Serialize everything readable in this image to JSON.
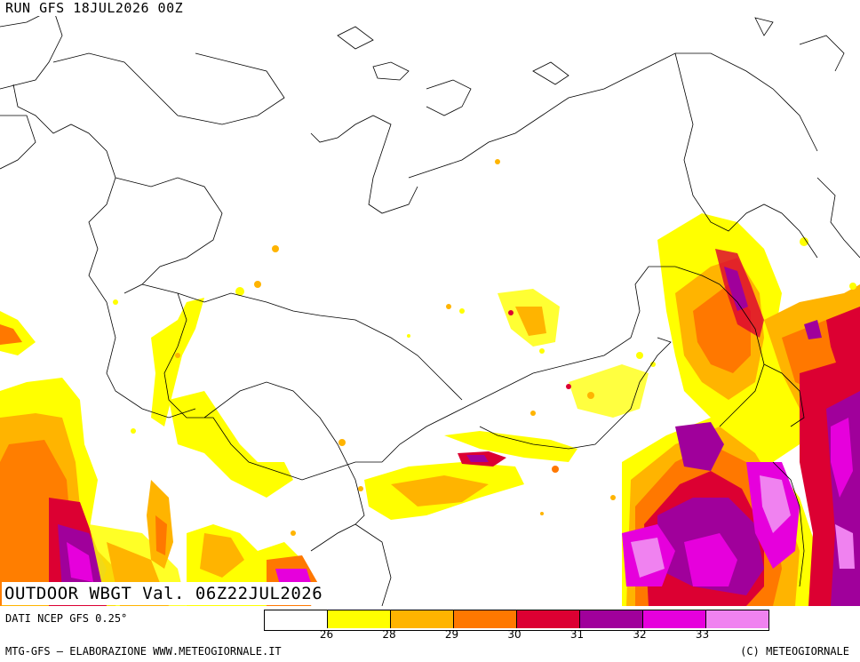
{
  "header": {
    "run_label": "RUN GFS 18JUL2026 00Z"
  },
  "map": {
    "title": "OUTDOOR WBGT Val. 06Z22JUL2026",
    "region": "Eurasia",
    "colors": {
      "land_outline": "#000000",
      "background": "#ffffff"
    }
  },
  "legend": {
    "colors": [
      "#ffffff",
      "#ffff00",
      "#ffb400",
      "#ff7800",
      "#dc0032",
      "#a0009b",
      "#e600dc",
      "#f082f0"
    ],
    "ticks": [
      "26",
      "28",
      "29",
      "30",
      "31",
      "32",
      "33"
    ]
  },
  "footer": {
    "data_source": "DATI NCEP GFS 0.25°",
    "credit_left": "MTG-GFS – ELABORAZIONE WWW.METEOGIORNALE.IT",
    "credit_right": "(C) METEOGIORNALE"
  }
}
